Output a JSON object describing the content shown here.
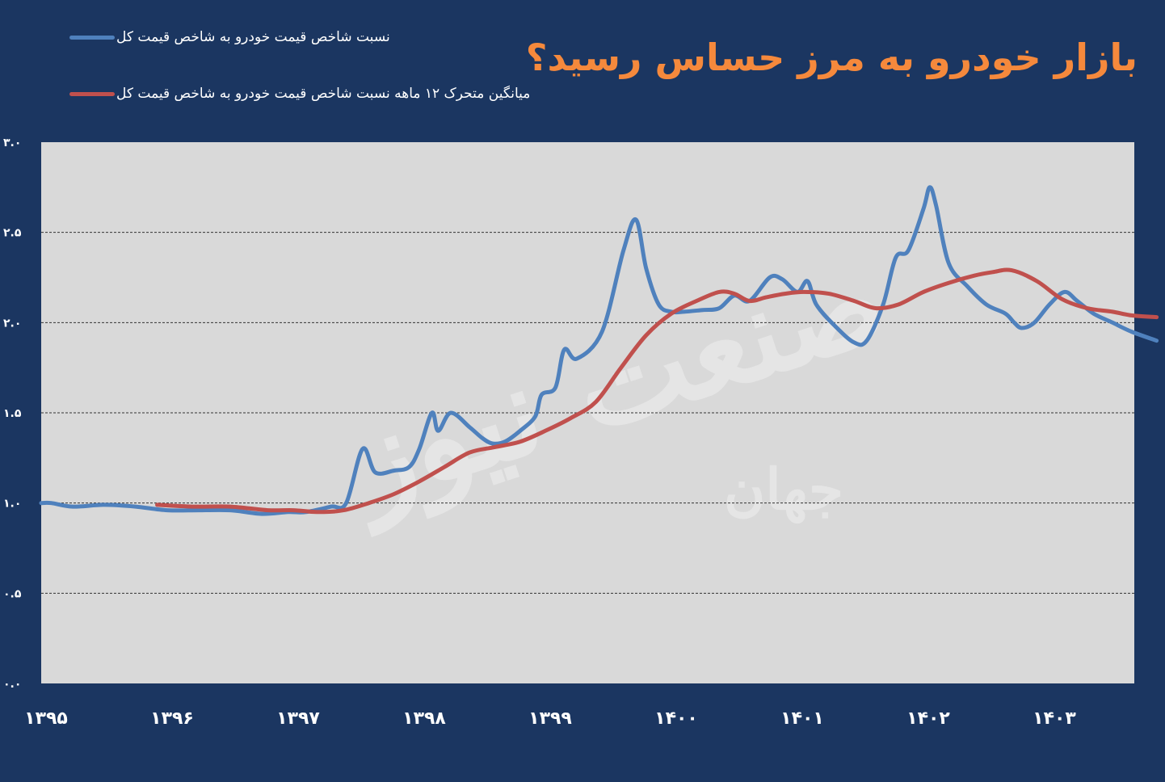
{
  "chart_data": {
    "type": "line",
    "title": "بازار خودرو به مرز حساس رسید؟",
    "ylim": [
      0,
      3
    ],
    "y_ticks": [
      "۰.۰",
      "۰.۵",
      "۱.۰",
      "۱.۵",
      "۲.۰",
      "۲.۵",
      "۳.۰"
    ],
    "x_ticks": [
      "۱۳۹۵",
      "۱۳۹۶",
      "۱۳۹۷",
      "۱۳۹۸",
      "۱۳۹۹",
      "۱۴۰۰",
      "۱۴۰۱",
      "۱۴۰۲",
      "۱۴۰۳"
    ],
    "x_range": [
      1395,
      1403.87
    ],
    "grid": "horizontal-dashed",
    "legend_position": "top-left",
    "series": [
      {
        "name": "نسبت شاخص قیمت خودرو به شاخص قیمت کل",
        "color": "#4f81bd",
        "points": [
          [
            1395.0,
            1.0
          ],
          [
            1395.08,
            1.0
          ],
          [
            1395.25,
            0.98
          ],
          [
            1395.5,
            0.99
          ],
          [
            1395.75,
            0.98
          ],
          [
            1396.0,
            0.96
          ],
          [
            1396.25,
            0.96
          ],
          [
            1396.5,
            0.96
          ],
          [
            1396.75,
            0.94
          ],
          [
            1396.96,
            0.95
          ],
          [
            1397.1,
            0.95
          ],
          [
            1397.3,
            0.98
          ],
          [
            1397.42,
            1.0
          ],
          [
            1397.55,
            1.3
          ],
          [
            1397.65,
            1.17
          ],
          [
            1397.8,
            1.18
          ],
          [
            1397.92,
            1.2
          ],
          [
            1398.0,
            1.3
          ],
          [
            1398.1,
            1.5
          ],
          [
            1398.15,
            1.4
          ],
          [
            1398.25,
            1.5
          ],
          [
            1398.4,
            1.42
          ],
          [
            1398.5,
            1.36
          ],
          [
            1398.58,
            1.33
          ],
          [
            1398.68,
            1.34
          ],
          [
            1398.8,
            1.4
          ],
          [
            1398.92,
            1.48
          ],
          [
            1398.97,
            1.6
          ],
          [
            1399.08,
            1.64
          ],
          [
            1399.15,
            1.85
          ],
          [
            1399.25,
            1.8
          ],
          [
            1399.45,
            1.95
          ],
          [
            1399.62,
            2.4
          ],
          [
            1399.72,
            2.57
          ],
          [
            1399.8,
            2.3
          ],
          [
            1399.9,
            2.1
          ],
          [
            1400.0,
            2.06
          ],
          [
            1400.1,
            2.06
          ],
          [
            1400.25,
            2.07
          ],
          [
            1400.38,
            2.08
          ],
          [
            1400.5,
            2.15
          ],
          [
            1400.62,
            2.12
          ],
          [
            1400.78,
            2.25
          ],
          [
            1400.88,
            2.24
          ],
          [
            1401.0,
            2.17
          ],
          [
            1401.08,
            2.23
          ],
          [
            1401.15,
            2.1
          ],
          [
            1401.3,
            1.98
          ],
          [
            1401.45,
            1.89
          ],
          [
            1401.55,
            1.9
          ],
          [
            1401.68,
            2.1
          ],
          [
            1401.78,
            2.36
          ],
          [
            1401.88,
            2.4
          ],
          [
            1402.0,
            2.63
          ],
          [
            1402.05,
            2.75
          ],
          [
            1402.1,
            2.65
          ],
          [
            1402.2,
            2.33
          ],
          [
            1402.35,
            2.2
          ],
          [
            1402.5,
            2.1
          ],
          [
            1402.65,
            2.05
          ],
          [
            1402.72,
            2.0
          ],
          [
            1402.78,
            1.97
          ],
          [
            1402.88,
            2.0
          ],
          [
            1403.0,
            2.1
          ],
          [
            1403.12,
            2.17
          ],
          [
            1403.22,
            2.12
          ],
          [
            1403.35,
            2.05
          ],
          [
            1403.5,
            2.0
          ],
          [
            1403.65,
            1.95
          ],
          [
            1403.85,
            1.9
          ]
        ]
      },
      {
        "name": "میانگین متحرک ۱۲ ماهه نسبت شاخص قیمت خودرو به شاخص قیمت کل",
        "color": "#c0504d",
        "points": [
          [
            1395.92,
            0.99
          ],
          [
            1396.2,
            0.98
          ],
          [
            1396.5,
            0.98
          ],
          [
            1396.8,
            0.96
          ],
          [
            1397.0,
            0.96
          ],
          [
            1397.2,
            0.95
          ],
          [
            1397.4,
            0.96
          ],
          [
            1397.6,
            1.0
          ],
          [
            1397.8,
            1.05
          ],
          [
            1398.0,
            1.12
          ],
          [
            1398.2,
            1.2
          ],
          [
            1398.4,
            1.28
          ],
          [
            1398.6,
            1.31
          ],
          [
            1398.8,
            1.34
          ],
          [
            1399.0,
            1.4
          ],
          [
            1399.2,
            1.47
          ],
          [
            1399.4,
            1.56
          ],
          [
            1399.6,
            1.75
          ],
          [
            1399.8,
            1.93
          ],
          [
            1400.0,
            2.05
          ],
          [
            1400.2,
            2.12
          ],
          [
            1400.38,
            2.17
          ],
          [
            1400.5,
            2.16
          ],
          [
            1400.62,
            2.12
          ],
          [
            1400.75,
            2.14
          ],
          [
            1400.9,
            2.16
          ],
          [
            1401.05,
            2.17
          ],
          [
            1401.25,
            2.16
          ],
          [
            1401.45,
            2.12
          ],
          [
            1401.62,
            2.08
          ],
          [
            1401.8,
            2.1
          ],
          [
            1402.0,
            2.17
          ],
          [
            1402.2,
            2.22
          ],
          [
            1402.4,
            2.26
          ],
          [
            1402.55,
            2.28
          ],
          [
            1402.7,
            2.29
          ],
          [
            1402.9,
            2.23
          ],
          [
            1403.1,
            2.13
          ],
          [
            1403.3,
            2.08
          ],
          [
            1403.5,
            2.06
          ],
          [
            1403.65,
            2.04
          ],
          [
            1403.85,
            2.03
          ]
        ]
      }
    ]
  },
  "watermark": {
    "line1": "صنعت نیوز",
    "line2": "جهان"
  }
}
